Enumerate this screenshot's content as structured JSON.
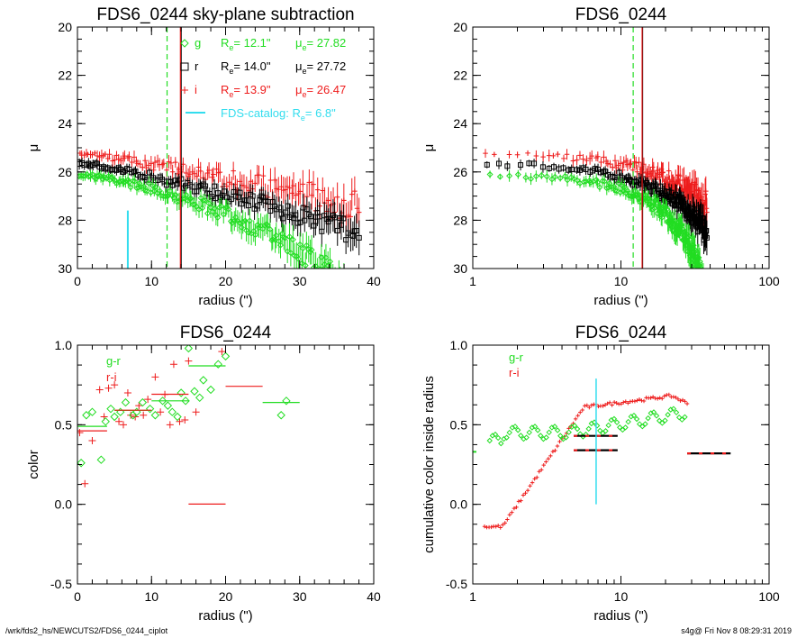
{
  "footer": {
    "left": "/wrk/fds2_hs/NEWCUTS2/FDS6_0244_ciplot",
    "right": "s4g@  Fri Nov  8 08:29:31 2019"
  },
  "colors": {
    "g": "#22dd22",
    "r": "#000000",
    "i": "#ee1c1c",
    "catalog": "#33ddee"
  },
  "chart_data": [
    {
      "id": "p1",
      "type": "scatter",
      "title": "FDS6_0244 sky-plane subtraction",
      "xlabel": "radius (\")",
      "ylabel": "μ",
      "xscale": "linear",
      "xlim": [
        0,
        40
      ],
      "ylim": [
        30,
        20
      ],
      "xticks": [
        "0",
        "10",
        "20",
        "30",
        "40"
      ],
      "yticks": [
        "20",
        "22",
        "24",
        "26",
        "28",
        "30"
      ],
      "legend": [
        {
          "marker": "diamond",
          "band": "g",
          "re_label": "R",
          "re_sub": "e",
          "re_value": "=  12.1\"",
          "mu_label": "μ",
          "mu_sub": "e",
          "mu_value": "= 27.82"
        },
        {
          "marker": "square",
          "band": "r",
          "re_label": "R",
          "re_sub": "e",
          "re_value": "=  14.0\"",
          "mu_label": "μ",
          "mu_sub": "e",
          "mu_value": "= 27.72"
        },
        {
          "marker": "plus",
          "band": "i",
          "re_label": "R",
          "re_sub": "e",
          "re_value": "=  13.9\"",
          "mu_label": "μ",
          "mu_sub": "e",
          "mu_value": "= 26.47"
        }
      ],
      "catalog_legend": {
        "label": "FDS-catalog: R",
        "sub": "e",
        "value": "=   6.8\""
      },
      "vlines": [
        {
          "x": 12.1,
          "color": "g",
          "style": "dashed"
        },
        {
          "x": 14.0,
          "color": "r",
          "style": "solid"
        },
        {
          "x": 13.9,
          "color": "i",
          "style": "solid"
        }
      ],
      "catalog_line": {
        "x": 6.8,
        "y_from": 30,
        "y_to": 27.6
      },
      "series": [
        {
          "name": "g",
          "profile": "g"
        },
        {
          "name": "r",
          "profile": "r"
        },
        {
          "name": "i",
          "profile": "i"
        }
      ]
    },
    {
      "id": "p2",
      "type": "scatter",
      "title": "FDS6_0244",
      "xlabel": "radius (\")",
      "ylabel": "μ",
      "xscale": "log",
      "xlim": [
        1,
        100
      ],
      "ylim": [
        30,
        20
      ],
      "xticks": [
        "1",
        "10",
        "100"
      ],
      "yticks": [
        "20",
        "22",
        "24",
        "26",
        "28",
        "30"
      ],
      "vlines": [
        {
          "x": 12.1,
          "color": "g",
          "style": "dashed"
        },
        {
          "x": 14.0,
          "color": "r",
          "style": "solid"
        },
        {
          "x": 13.9,
          "color": "i",
          "style": "solid"
        }
      ]
    },
    {
      "id": "p3",
      "type": "scatter",
      "title": "FDS6_0244",
      "xlabel": "radius (\")",
      "ylabel": "color",
      "xscale": "linear",
      "xlim": [
        0,
        40
      ],
      "ylim": [
        -0.5,
        1.0
      ],
      "xticks": [
        "0",
        "10",
        "20",
        "30",
        "40"
      ],
      "yticks": [
        "-0.5",
        "0.0",
        "0.5",
        "1.0"
      ],
      "legend": [
        {
          "label": "g-r",
          "color": "g"
        },
        {
          "label": "r-i",
          "color": "i"
        }
      ],
      "gr_points": [
        [
          0.5,
          0.26
        ],
        [
          1.2,
          0.56
        ],
        [
          2.0,
          0.58
        ],
        [
          3.2,
          0.28
        ],
        [
          3.8,
          0.52
        ],
        [
          4.5,
          0.6
        ],
        [
          5.0,
          0.55
        ],
        [
          5.8,
          0.58
        ],
        [
          6.5,
          0.64
        ],
        [
          7.5,
          0.56
        ],
        [
          8.0,
          0.58
        ],
        [
          8.8,
          0.64
        ],
        [
          9.8,
          0.6
        ],
        [
          10.5,
          0.56
        ],
        [
          11.5,
          0.65
        ],
        [
          12.2,
          0.62
        ],
        [
          12.8,
          0.58
        ],
        [
          13.5,
          0.55
        ],
        [
          14.0,
          0.7
        ],
        [
          14.6,
          0.65
        ],
        [
          15.0,
          0.98
        ],
        [
          15.8,
          0.71
        ],
        [
          16.5,
          0.67
        ],
        [
          17.0,
          0.78
        ],
        [
          18.0,
          0.72
        ],
        [
          19.0,
          0.88
        ],
        [
          20.0,
          0.93
        ],
        [
          27.5,
          0.56
        ],
        [
          28.2,
          0.65
        ]
      ],
      "ri_points": [
        [
          0.3,
          0.45
        ],
        [
          1.0,
          0.13
        ],
        [
          2.0,
          0.4
        ],
        [
          3.0,
          0.72
        ],
        [
          3.6,
          0.55
        ],
        [
          4.2,
          0.73
        ],
        [
          5.0,
          0.75
        ],
        [
          5.6,
          0.52
        ],
        [
          6.2,
          0.5
        ],
        [
          6.8,
          0.7
        ],
        [
          7.2,
          0.56
        ],
        [
          7.8,
          0.55
        ],
        [
          8.3,
          0.62
        ],
        [
          8.9,
          0.56
        ],
        [
          9.5,
          0.66
        ],
        [
          10.5,
          0.8
        ],
        [
          11.2,
          0.58
        ],
        [
          11.8,
          0.69
        ],
        [
          12.5,
          0.5
        ],
        [
          13.0,
          0.88
        ],
        [
          13.8,
          0.52
        ],
        [
          14.5,
          0.53
        ],
        [
          15.0,
          0.9
        ],
        [
          16.0,
          0.58
        ],
        [
          19.5,
          0.96
        ]
      ],
      "gr_segments": [
        [
          0,
          4,
          0.49
        ],
        [
          5,
          10,
          0.59
        ],
        [
          10,
          15,
          0.65
        ],
        [
          15,
          20,
          0.87
        ],
        [
          20,
          25,
          1.01
        ],
        [
          25,
          30,
          0.64
        ]
      ],
      "ri_segments": [
        [
          0,
          4,
          0.47
        ],
        [
          5,
          10,
          0.6
        ],
        [
          10,
          15,
          0.7
        ],
        [
          15,
          20,
          0.01
        ],
        [
          20,
          25,
          0.75
        ]
      ]
    },
    {
      "id": "p4",
      "type": "scatter",
      "title": "FDS6_0244",
      "xlabel": "radius (\")",
      "ylabel": "cumulative color inside radius",
      "xscale": "log",
      "xlim": [
        1,
        100
      ],
      "ylim": [
        -0.5,
        1.0
      ],
      "xticks": [
        "1",
        "10",
        "100"
      ],
      "yticks": [
        "-0.5",
        "0.0",
        "0.5",
        "1.0"
      ],
      "legend": [
        {
          "label": "g-r",
          "color": "g"
        },
        {
          "label": "r-i",
          "color": "i"
        }
      ],
      "catalog_line": {
        "x": 6.8,
        "y_from": 0.0,
        "y_to": 0.79
      },
      "segments": [
        [
          4.8,
          9.5,
          0.43
        ],
        [
          4.8,
          9.5,
          0.34
        ],
        [
          28,
          55,
          0.32
        ]
      ]
    }
  ]
}
